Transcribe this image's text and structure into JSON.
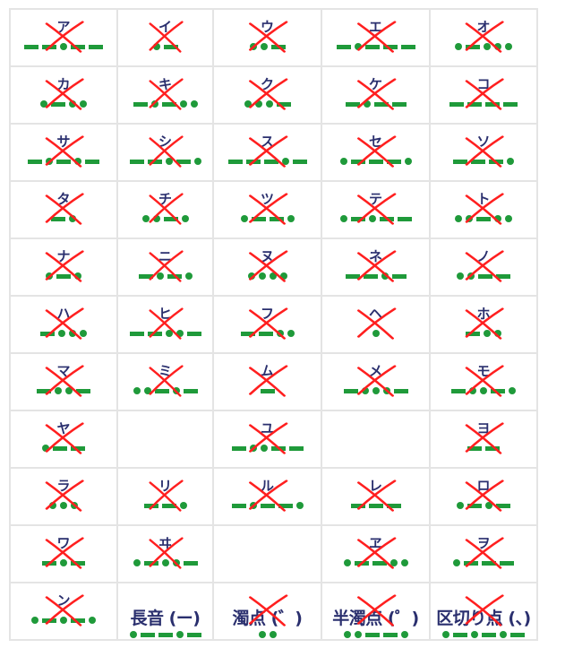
{
  "cells": [
    {
      "kana": "ア",
      "code": "--.--",
      "crossed": true
    },
    {
      "kana": "イ",
      "code": ".-",
      "crossed": true
    },
    {
      "kana": "ウ",
      "code": "..-",
      "crossed": true
    },
    {
      "kana": "エ",
      "code": "-.---",
      "crossed": true
    },
    {
      "kana": "オ",
      "code": ".-...",
      "crossed": true
    },
    {
      "kana": "カ",
      "code": ".-..",
      "crossed": true
    },
    {
      "kana": "キ",
      "code": "-.-..",
      "crossed": true
    },
    {
      "kana": "ク",
      "code": "...-",
      "crossed": true
    },
    {
      "kana": "ケ",
      "code": "-.--",
      "crossed": true
    },
    {
      "kana": "コ",
      "code": "----",
      "crossed": true
    },
    {
      "kana": "サ",
      "code": "-.-.-",
      "crossed": true
    },
    {
      "kana": "シ",
      "code": "--.-.",
      "crossed": true
    },
    {
      "kana": "ス",
      "code": "---.-",
      "crossed": true
    },
    {
      "kana": "セ",
      "code": ".---.",
      "crossed": true
    },
    {
      "kana": "ソ",
      "code": "---.",
      "crossed": true
    },
    {
      "kana": "タ",
      "code": "-.",
      "crossed": true
    },
    {
      "kana": "チ",
      "code": "..-.",
      "crossed": true
    },
    {
      "kana": "ツ",
      "code": ".--.",
      "crossed": true
    },
    {
      "kana": "テ",
      "code": ".-.--",
      "crossed": true
    },
    {
      "kana": "ト",
      "code": "..-..",
      "crossed": true
    },
    {
      "kana": "ナ",
      "code": ".-.",
      "crossed": true
    },
    {
      "kana": "ニ",
      "code": "-.-.",
      "crossed": true
    },
    {
      "kana": "ヌ",
      "code": "....",
      "crossed": true
    },
    {
      "kana": "ネ",
      "code": "--.-",
      "crossed": true
    },
    {
      "kana": "ノ",
      "code": "..--",
      "crossed": true
    },
    {
      "kana": "ハ",
      "code": "-...",
      "crossed": true
    },
    {
      "kana": "ヒ",
      "code": "--..-",
      "crossed": true
    },
    {
      "kana": "フ",
      "code": "--..",
      "crossed": true
    },
    {
      "kana": "ヘ",
      "code": ".",
      "crossed": true
    },
    {
      "kana": "ホ",
      "code": "-..",
      "crossed": true
    },
    {
      "kana": "マ",
      "code": "-..-",
      "crossed": true
    },
    {
      "kana": "ミ",
      "code": "..-.-",
      "crossed": true
    },
    {
      "kana": "ム",
      "code": "-",
      "crossed": true
    },
    {
      "kana": "メ",
      "code": "-...-",
      "crossed": true
    },
    {
      "kana": "モ",
      "code": "-..-.",
      "crossed": true
    },
    {
      "kana": "ヤ",
      "code": ".--",
      "crossed": true
    },
    {
      "kana": "",
      "code": "",
      "crossed": false
    },
    {
      "kana": "ユ",
      "code": "-..--",
      "crossed": true
    },
    {
      "kana": "",
      "code": "",
      "crossed": false
    },
    {
      "kana": "ヨ",
      "code": "--",
      "crossed": true
    },
    {
      "kana": "ラ",
      "code": "...",
      "crossed": true
    },
    {
      "kana": "リ",
      "code": "--.",
      "crossed": true
    },
    {
      "kana": "ル",
      "code": "-.--.",
      "crossed": true
    },
    {
      "kana": "レ",
      "code": "---",
      "crossed": true
    },
    {
      "kana": "ロ",
      "code": ".-.-",
      "crossed": true
    },
    {
      "kana": "ワ",
      "code": "-.-",
      "crossed": true
    },
    {
      "kana": "ヰ",
      "code": ".-..-",
      "crossed": true
    },
    {
      "kana": "",
      "code": "",
      "crossed": false
    },
    {
      "kana": "ヱ",
      "code": ".--..",
      "crossed": true
    },
    {
      "kana": "ヲ",
      "code": ".---",
      "crossed": true
    },
    {
      "kana": "ン",
      "code": ".-.-.",
      "crossed": true
    },
    {
      "kana": "長音 (ー)",
      "code": ".--.-",
      "crossed": false,
      "big": true
    },
    {
      "kana": "濁点 (゛)",
      "code": "..",
      "crossed": true,
      "big": true
    },
    {
      "kana": "半濁点 (゜)",
      "code": "..--.",
      "crossed": true,
      "big": true
    },
    {
      "kana": "区切り点 (、)",
      "code": ".-.-.-",
      "crossed": true,
      "big": true
    }
  ],
  "colors": {
    "mark": "#1f9a3a",
    "cross": "#ff1f1f",
    "text": "#2a2f6e",
    "grid": "#e4e4e4"
  }
}
